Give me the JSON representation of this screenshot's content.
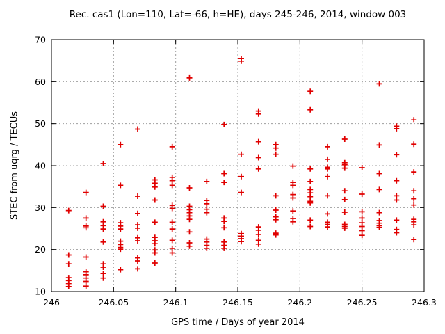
{
  "chart_data": {
    "type": "scatter",
    "title": "Rec. cas1 (Lon=110, Lat=-66, h=HE), days 245-246, 2014, window 003",
    "xlabel": "GPS time / Days of year 2014",
    "ylabel": "STEC from uqrg / TECUs",
    "xlim": [
      246,
      246.3
    ],
    "ylim": [
      10,
      70
    ],
    "x_ticks": [
      246,
      246.05,
      246.1,
      246.15,
      246.2,
      246.25,
      246.3
    ],
    "x_tick_labels": [
      "246",
      "246.05",
      "246.1",
      "246.15",
      "246.2",
      "246.25",
      "246.3"
    ],
    "y_ticks": [
      10,
      20,
      30,
      40,
      50,
      60,
      70
    ],
    "y_tick_labels": [
      "10",
      "20",
      "30",
      "40",
      "50",
      "60",
      "70"
    ],
    "grid": true,
    "legend_visible": false,
    "colors": {
      "marker": "#e00000",
      "grid": "#9e9e9e",
      "border": "#000000",
      "background": "#ffffff"
    },
    "marker_shape": "plus",
    "epochs": [
      {
        "day": 246.0139,
        "stec": [
          29.3,
          18.7,
          16.6,
          13.3,
          12.6,
          11.9,
          11.2
        ]
      },
      {
        "day": 246.0278,
        "stec": [
          33.6,
          27.5,
          25.6,
          25.2,
          18.2,
          14.7,
          14.0,
          13.2,
          12.4,
          11.3
        ]
      },
      {
        "day": 246.0417,
        "stec": [
          40.5,
          30.3,
          26.6,
          25.7,
          24.9,
          21.8,
          16.6,
          15.8,
          14.3,
          13.2
        ]
      },
      {
        "day": 246.0556,
        "stec": [
          45.0,
          35.3,
          26.4,
          25.6,
          24.9,
          22.0,
          21.2,
          20.5,
          20.1,
          15.2
        ]
      },
      {
        "day": 246.0694,
        "stec": [
          48.7,
          32.7,
          28.6,
          25.9,
          25.1,
          22.8,
          22.1,
          18.0,
          17.3,
          15.4
        ]
      },
      {
        "day": 246.0833,
        "stec": [
          36.6,
          35.8,
          34.9,
          31.8,
          26.5,
          22.9,
          22.1,
          21.4,
          19.9,
          19.2,
          16.8
        ]
      },
      {
        "day": 246.0972,
        "stec": [
          44.5,
          37.2,
          36.4,
          35.3,
          30.5,
          29.8,
          26.5,
          24.9,
          22.2,
          20.3,
          19.2
        ]
      },
      {
        "day": 246.1111,
        "stec": [
          60.9,
          34.7,
          30.3,
          29.5,
          28.8,
          28.0,
          27.2,
          24.2,
          21.6,
          20.8
        ]
      },
      {
        "day": 246.125,
        "stec": [
          36.2,
          31.7,
          30.9,
          29.6,
          28.8,
          22.5,
          21.8,
          21.0,
          20.3
        ]
      },
      {
        "day": 246.1389,
        "stec": [
          49.8,
          38.1,
          36.0,
          27.5,
          26.7,
          25.2,
          21.8,
          21.0,
          20.3
        ]
      },
      {
        "day": 246.1528,
        "stec": [
          65.5,
          64.9,
          42.7,
          37.4,
          33.6,
          23.8,
          23.2,
          22.6,
          21.9
        ]
      },
      {
        "day": 246.1667,
        "stec": [
          53.0,
          52.3,
          45.7,
          41.9,
          39.2,
          25.4,
          24.6,
          23.6,
          22.2,
          21.3
        ]
      },
      {
        "day": 246.1806,
        "stec": [
          45.0,
          44.2,
          42.7,
          32.8,
          29.4,
          27.8,
          27.1,
          23.9,
          23.5
        ]
      },
      {
        "day": 246.1944,
        "stec": [
          39.9,
          36.0,
          35.3,
          33.1,
          32.3,
          29.2,
          27.4,
          26.6
        ]
      },
      {
        "day": 246.2083,
        "stec": [
          57.7,
          53.3,
          39.2,
          36.2,
          34.3,
          33.5,
          32.6,
          31.5,
          31.1,
          27.0,
          25.5
        ]
      },
      {
        "day": 246.2222,
        "stec": [
          44.5,
          41.5,
          39.6,
          39.2,
          37.4,
          32.8,
          28.5,
          26.5,
          26.0,
          25.4
        ]
      },
      {
        "day": 246.2361,
        "stec": [
          46.3,
          40.7,
          40.2,
          39.4,
          34.0,
          31.9,
          28.9,
          26.0,
          25.5,
          25.1
        ]
      },
      {
        "day": 246.25,
        "stec": [
          39.5,
          33.2,
          29.0,
          27.5,
          26.4,
          25.5,
          24.5,
          23.4
        ]
      },
      {
        "day": 246.2639,
        "stec": [
          59.5,
          44.9,
          38.1,
          34.3,
          28.8,
          26.9,
          26.3,
          25.7,
          25.3
        ]
      },
      {
        "day": 246.2778,
        "stec": [
          49.4,
          48.8,
          42.6,
          36.4,
          32.8,
          31.8,
          27.0,
          24.8,
          24.0
        ]
      },
      {
        "day": 246.2917,
        "stec": [
          50.9,
          45.1,
          38.5,
          34.0,
          32.1,
          30.6,
          27.2,
          26.6,
          25.9,
          22.4
        ]
      }
    ]
  }
}
